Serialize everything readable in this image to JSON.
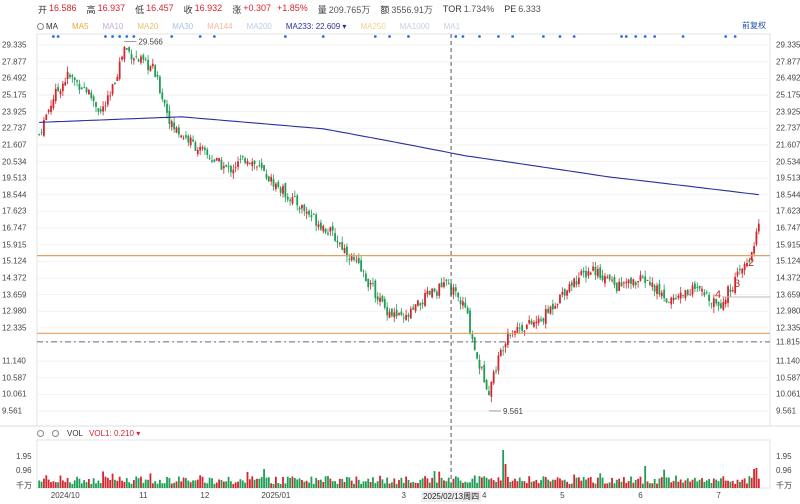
{
  "quote": {
    "open_label": "开",
    "open": "16.586",
    "high_label": "高",
    "high": "16.937",
    "low_label": "低",
    "low": "16.457",
    "close_label": "收",
    "close": "16.932",
    "change_label": "涨",
    "change": "+0.307",
    "change_pct": "+1.85%",
    "volume_label": "量",
    "volume": "209.765万",
    "amount_label": "额",
    "amount": "3556.91万",
    "tor_label": "TOR",
    "tor": "1.734%",
    "pe_label": "PE",
    "pe": "6.333"
  },
  "ma_bar": {
    "name": "MA",
    "lines": [
      "MA5",
      "MA10",
      "MA20",
      "MA30",
      "MA144",
      "MA200",
      "MA233",
      "MA250",
      "MA1000",
      "MA1"
    ],
    "ma233_label": "MA233:",
    "ma233_value": "22.609",
    "ma233_color": "#2b2f9e",
    "fq_button": "前复权"
  },
  "price_axis": [
    "29.335",
    "27.877",
    "26.492",
    "25.175",
    "23.925",
    "22.737",
    "21.607",
    "20.534",
    "19.513",
    "18.544",
    "17.623",
    "16.747",
    "15.915",
    "15.124",
    "14.372",
    "13.659",
    "12.980",
    "12.335",
    "11.815",
    "11.140",
    "10.587",
    "10.061",
    "9.561"
  ],
  "annotations": {
    "high_price": "29.566",
    "low_price": "9.561",
    "wave_labels": [
      "2",
      "3",
      "4"
    ],
    "crosshair_label": "2025/02/13周四"
  },
  "volume_panel": {
    "name": "VOL",
    "vol1_label": "VOL1:",
    "vol1_value": "0.210",
    "axis": [
      "1.95",
      "0.96",
      "千万"
    ]
  },
  "x_axis": [
    "2024/10",
    "11",
    "12",
    "2025/01",
    "2025/02/13周四",
    "3",
    "4",
    "5",
    "6",
    "7"
  ],
  "colors": {
    "up": "#d3262e",
    "down": "#1f9d55",
    "ma233": "#2b2f9e",
    "support": "#e0a060",
    "dash": "#6a6a8a"
  },
  "chart_data": {
    "type": "candlestick",
    "title": "",
    "ylim": [
      9.3,
      29.8
    ],
    "y_scale": "log",
    "x_labels": [
      "2024/10",
      "11",
      "12",
      "2025/01",
      "2025/02/13周四",
      "3",
      "4",
      "5",
      "6",
      "7"
    ],
    "close_series_knots": [
      [
        0,
        22.3
      ],
      [
        6,
        25.0
      ],
      [
        12,
        26.7
      ],
      [
        20,
        25.6
      ],
      [
        26,
        23.9
      ],
      [
        30,
        25.0
      ],
      [
        36,
        29.1
      ],
      [
        42,
        28.0
      ],
      [
        48,
        27.3
      ],
      [
        56,
        22.9
      ],
      [
        70,
        21.0
      ],
      [
        80,
        20.0
      ],
      [
        88,
        20.8
      ],
      [
        100,
        19.1
      ],
      [
        112,
        17.7
      ],
      [
        124,
        16.4
      ],
      [
        134,
        15.0
      ],
      [
        146,
        13.1
      ],
      [
        154,
        12.6
      ],
      [
        164,
        13.6
      ],
      [
        172,
        14.1
      ],
      [
        180,
        13.1
      ],
      [
        185,
        11.2
      ],
      [
        190,
        10.2
      ],
      [
        198,
        12.2
      ],
      [
        212,
        12.6
      ],
      [
        224,
        14.1
      ],
      [
        234,
        14.8
      ],
      [
        244,
        14.0
      ],
      [
        256,
        14.3
      ],
      [
        266,
        13.4
      ],
      [
        276,
        13.9
      ],
      [
        288,
        13.3
      ],
      [
        300,
        15.2
      ],
      [
        304,
        16.9
      ]
    ],
    "ma233_knots": [
      [
        0,
        23.15
      ],
      [
        60,
        23.55
      ],
      [
        120,
        22.7
      ],
      [
        180,
        20.9
      ],
      [
        240,
        19.6
      ],
      [
        304,
        18.55
      ]
    ],
    "support_lines": [
      15.39,
      12.13
    ],
    "reference_line": 11.815,
    "annotated_high": 29.566,
    "annotated_low": 9.561,
    "volume_max_label": 1.95,
    "volume_mid_label": 0.96
  }
}
